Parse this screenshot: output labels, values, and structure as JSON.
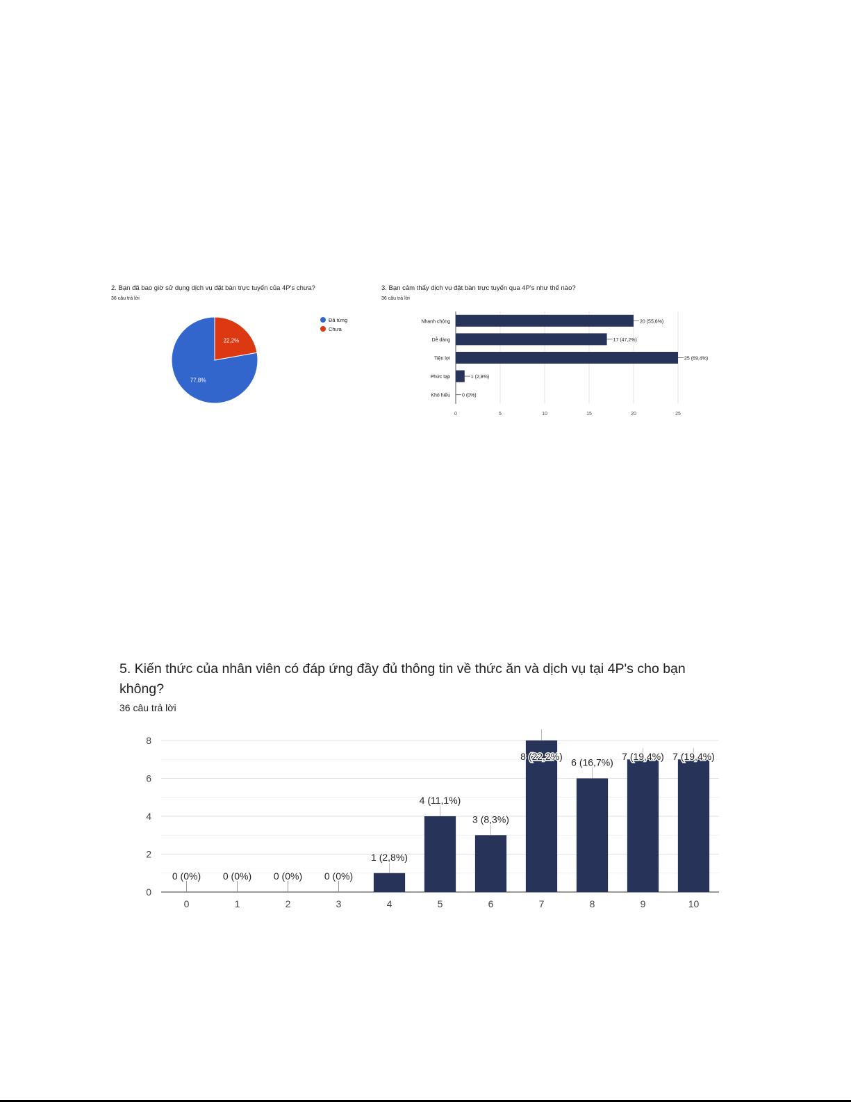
{
  "charts": {
    "q2": {
      "title": "2. Bạn đã bao giờ sử dụng dịch vụ đặt bàn trực tuyến của 4P's chưa?",
      "responses": "36 câu trả lời"
    },
    "q3": {
      "title": "3. Bạn cảm thấy dịch vụ đặt bàn trực tuyến qua 4P's như thế nào?",
      "responses": "36 câu trả lời"
    },
    "q5": {
      "title": "5. Kiến thức của nhân viên có đáp ứng đầy đủ thông tin về thức ăn và dịch vụ tại 4P's cho bạn không?",
      "responses": "36 câu trả lời"
    }
  },
  "chart_data": [
    {
      "type": "pie",
      "slices": [
        {
          "label": "Đã từng",
          "value": 77.8,
          "display": "77,8%",
          "color": "#3366cc"
        },
        {
          "label": "Chưa",
          "value": 22.2,
          "display": "22,2%",
          "color": "#dc3912"
        }
      ],
      "legend": "right"
    },
    {
      "type": "bar",
      "orientation": "horizontal",
      "categories": [
        "Nhanh chóng",
        "Dễ dàng",
        "Tiện lợi",
        "Phức tạp",
        "Khó hiểu"
      ],
      "values": [
        20,
        17,
        25,
        1,
        0
      ],
      "labels": [
        "20 (55,6%)",
        "17 (47,2%)",
        "25 (69,4%)",
        "1 (2,8%)",
        "0 (0%)"
      ],
      "xticks": [
        "0",
        "5",
        "10",
        "15",
        "20",
        "25"
      ],
      "xlim": [
        0,
        25
      ],
      "grid": true,
      "color": "#273359"
    },
    {
      "type": "bar",
      "categories": [
        "0",
        "1",
        "2",
        "3",
        "4",
        "5",
        "6",
        "7",
        "8",
        "9",
        "10"
      ],
      "values": [
        0,
        0,
        0,
        0,
        1,
        4,
        3,
        8,
        6,
        7,
        7
      ],
      "labels": [
        "0 (0%)",
        "0 (0%)",
        "0 (0%)",
        "0 (0%)",
        "1 (2,8%)",
        "4 (11,1%)",
        "3 (8,3%)",
        "8 (22,2%)",
        "6 (16,7%)",
        "7 (19,4%)",
        "7 (19,4%)"
      ],
      "yticks": [
        "0",
        "2",
        "4",
        "6",
        "8"
      ],
      "ylim": [
        0,
        8
      ],
      "grid": true,
      "color": "#273359"
    }
  ]
}
